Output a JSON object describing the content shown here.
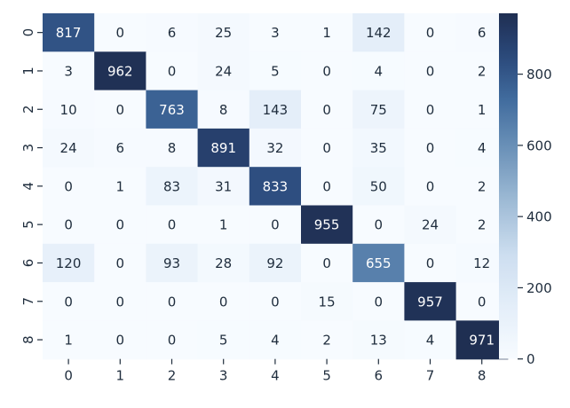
{
  "chart_data": {
    "type": "heatmap",
    "title": "",
    "xlabel": "",
    "ylabel": "",
    "x_categories": [
      "0",
      "1",
      "2",
      "3",
      "4",
      "5",
      "6",
      "7",
      "8"
    ],
    "y_categories": [
      "0",
      "1",
      "2",
      "3",
      "4",
      "5",
      "6",
      "7",
      "8"
    ],
    "values": [
      [
        817,
        0,
        6,
        25,
        3,
        1,
        142,
        0,
        6
      ],
      [
        3,
        962,
        0,
        24,
        5,
        0,
        4,
        0,
        2
      ],
      [
        10,
        0,
        763,
        8,
        143,
        0,
        75,
        0,
        1
      ],
      [
        24,
        6,
        8,
        891,
        32,
        0,
        35,
        0,
        4
      ],
      [
        0,
        1,
        83,
        31,
        833,
        0,
        50,
        0,
        2
      ],
      [
        0,
        0,
        0,
        1,
        0,
        955,
        0,
        24,
        2
      ],
      [
        120,
        0,
        93,
        28,
        92,
        0,
        655,
        0,
        12
      ],
      [
        0,
        0,
        0,
        0,
        0,
        15,
        0,
        957,
        0
      ],
      [
        1,
        0,
        0,
        5,
        4,
        2,
        13,
        4,
        971
      ]
    ],
    "colormap": "Blues",
    "color_range": [
      0,
      971
    ],
    "colorbar_ticks": [
      "0",
      "200",
      "400",
      "600",
      "800"
    ],
    "colors": {
      "low": "#f7fbff",
      "high": "#1f2f52",
      "text_light": "#ffffff",
      "text_dark": "#1f2d3d"
    }
  }
}
